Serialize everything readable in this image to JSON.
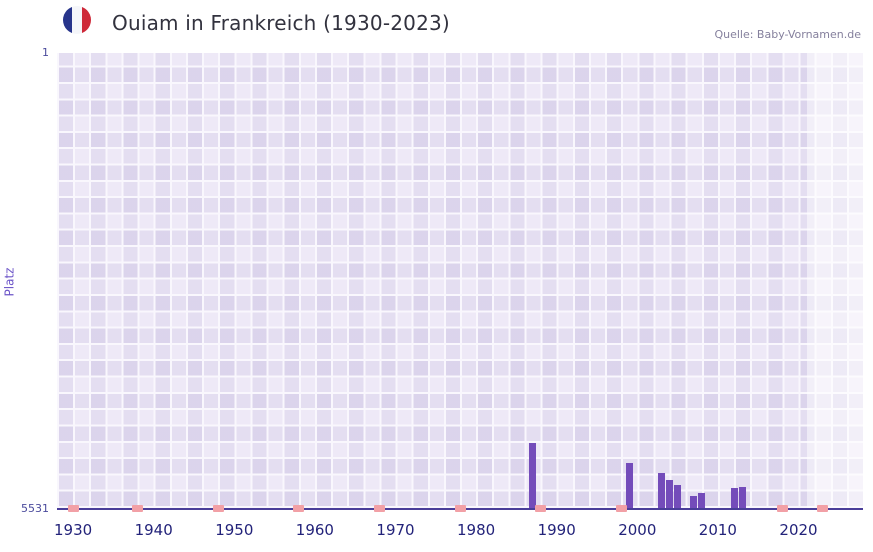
{
  "header": {
    "title": "Ouiam in Frankreich (1930-2023)",
    "flag_icon": "french-flag",
    "source": "Quelle: Baby-Vornamen.de"
  },
  "chart_data": {
    "type": "bar",
    "title": "Ouiam in Frankreich (1930-2023)",
    "xlabel": "",
    "ylabel": "Platz",
    "y_axis": {
      "top_label": "1",
      "bottom_label": "5531",
      "min": 1,
      "max": 5531,
      "inverted": true
    },
    "x_axis": {
      "domain_min": 1928,
      "domain_max": 2028,
      "ticks": [
        1930,
        1940,
        1950,
        1960,
        1970,
        1980,
        1990,
        2000,
        2010,
        2020
      ]
    },
    "bars": [
      {
        "year": 1987,
        "rank": 4740
      },
      {
        "year": 1999,
        "rank": 4985
      },
      {
        "year": 2003,
        "rank": 5105
      },
      {
        "year": 2004,
        "rank": 5195
      },
      {
        "year": 2005,
        "rank": 5255
      },
      {
        "year": 2007,
        "rank": 5385
      },
      {
        "year": 2008,
        "rank": 5350
      },
      {
        "year": 2012,
        "rank": 5285
      },
      {
        "year": 2013,
        "rank": 5280
      }
    ],
    "no_rank_marker_years": [
      1930,
      1938,
      1948,
      1958,
      1968,
      1978,
      1988,
      1998,
      2018,
      2023
    ],
    "recent_band": {
      "from_year": 2021,
      "to_year": 2028
    },
    "legend": null,
    "grid": true,
    "colors": {
      "bar": "#744cba",
      "no_rank_marker": "#f2a0a6",
      "axis_line": "#4a3e99",
      "grid_line": "#f9f7fd",
      "tick_label": "#23237a",
      "y_tick_label": "#4a4a9c",
      "y_axis_label": "#6c55c8",
      "title": "#32323e",
      "source": "#85809d"
    }
  }
}
